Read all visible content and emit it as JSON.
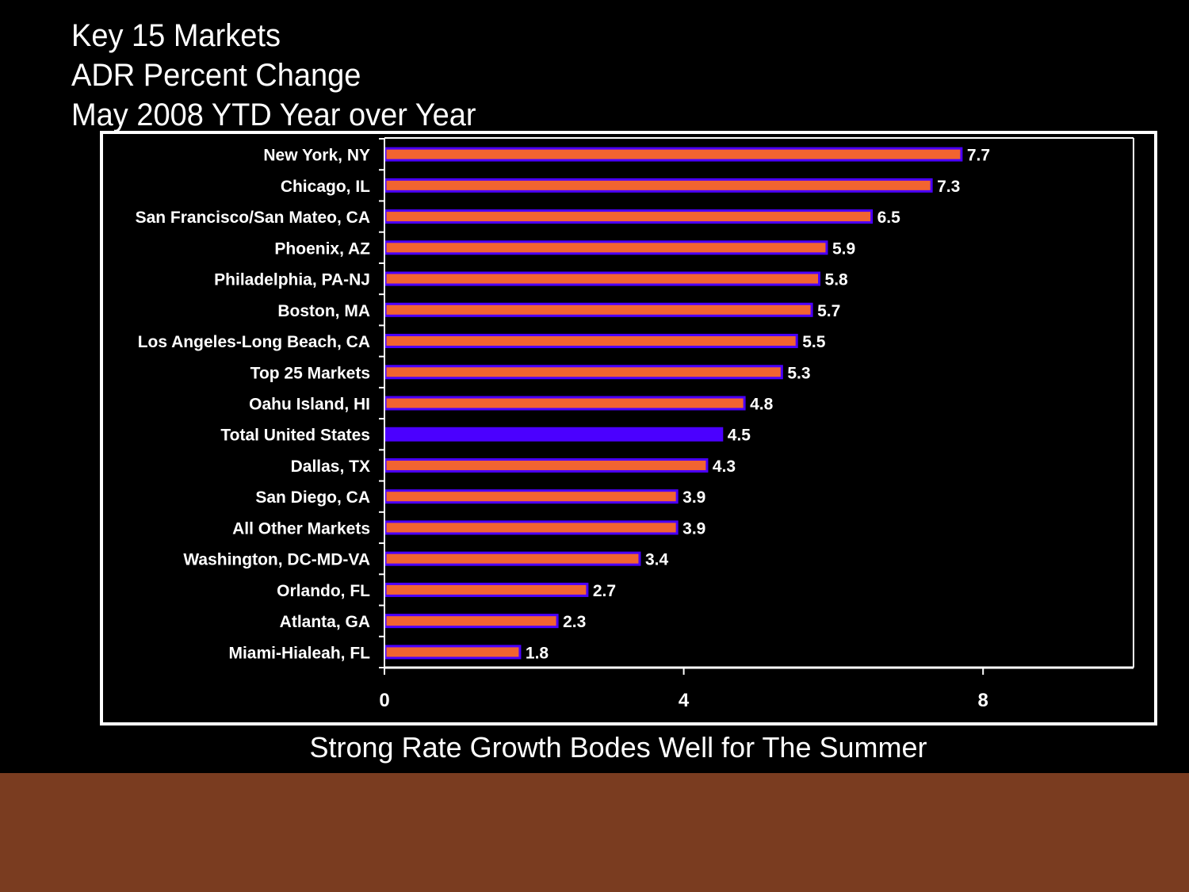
{
  "slide": {
    "title_lines": [
      "Key 15 Markets",
      "ADR Percent Change",
      "May 2008 YTD Year over Year"
    ],
    "subtitle": "Strong Rate Growth Bodes Well for The Summer",
    "footer_color": "#7a3c20"
  },
  "chart_data": {
    "type": "bar",
    "orientation": "horizontal",
    "title": "Key 15 Markets ADR Percent Change May 2008 YTD Year over Year",
    "xlabel": "",
    "ylabel": "",
    "xlim": [
      0,
      10
    ],
    "xticks": [
      0,
      4,
      8
    ],
    "tick_labels": [
      "0",
      "4",
      "8"
    ],
    "grid": false,
    "legend": "none",
    "categories": [
      "New York, NY",
      "Chicago, IL",
      "San Francisco/San Mateo, CA",
      "Phoenix, AZ",
      "Philadelphia, PA-NJ",
      "Boston, MA",
      "Los Angeles-Long Beach, CA",
      "Top 25 Markets",
      "Oahu Island, HI",
      "Total United States",
      "Dallas, TX",
      "San Diego, CA",
      "All Other Markets",
      "Washington, DC-MD-VA",
      "Orlando, FL",
      "Atlanta, GA",
      "Miami-Hialeah, FL"
    ],
    "values": [
      7.7,
      7.3,
      6.5,
      5.9,
      5.8,
      5.7,
      5.5,
      5.3,
      4.8,
      4.5,
      4.3,
      3.9,
      3.9,
      3.4,
      2.7,
      2.3,
      1.8
    ],
    "value_labels": [
      "7.7",
      "7.3",
      "6.5",
      "5.9",
      "5.8",
      "5.7",
      "5.5",
      "5.3",
      "4.8",
      "4.5",
      "4.3",
      "3.9",
      "3.9",
      "3.4",
      "2.7",
      "2.3",
      "1.8"
    ],
    "highlight_category": "Total United States",
    "colors": {
      "bar_fill": "#f26430",
      "bar_outline": "#4b00ff",
      "highlight_fill": "#4b00ff",
      "axis": "#ffffff"
    }
  }
}
